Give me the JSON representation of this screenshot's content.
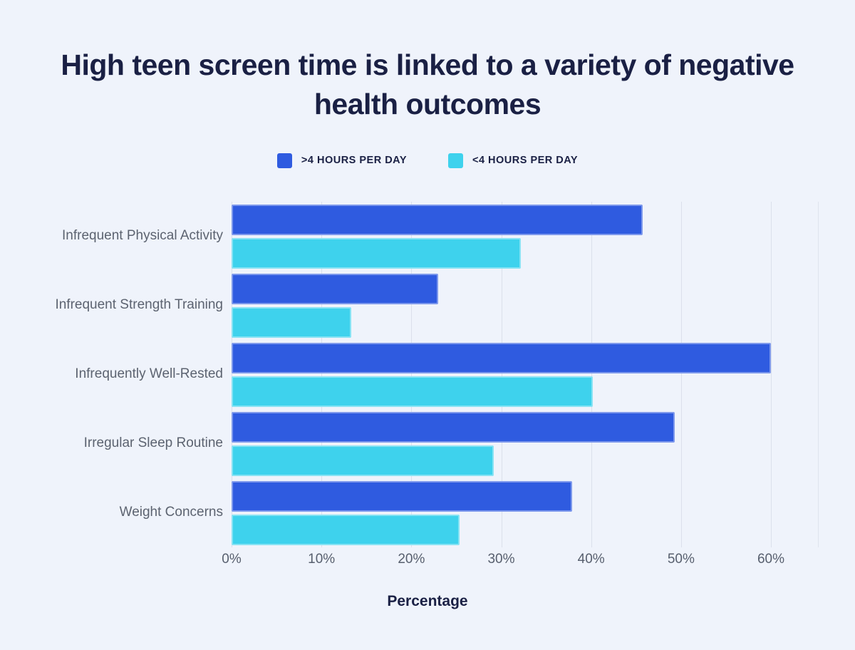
{
  "page": {
    "background_color": "#EFF3FB"
  },
  "chart_data": {
    "type": "bar",
    "orientation": "horizontal",
    "title": "High teen screen time is linked to a variety of negative health outcomes",
    "xlabel": "Percentage",
    "ylabel": "",
    "categories": [
      "Infrequent Physical Activity",
      "Infrequent Strength Training",
      "Infrequently Well-Rested",
      "Irregular Sleep Routine",
      "Weight Concerns"
    ],
    "series": [
      {
        "name": ">4 HOURS PER DAY",
        "color": "#2F5BE0",
        "values": [
          45.7,
          23.0,
          60.0,
          49.3,
          37.9
        ]
      },
      {
        "name": "<4 HOURS PER DAY",
        "color": "#3ED2ED",
        "values": [
          32.2,
          13.3,
          40.2,
          29.2,
          25.4
        ]
      }
    ],
    "xlim": [
      0,
      60
    ],
    "xticks": [
      0,
      10,
      20,
      30,
      40,
      50,
      60
    ],
    "xtick_labels": [
      "0%",
      "10%",
      "20%",
      "30%",
      "40%",
      "50%",
      "60%"
    ],
    "grid": "vertical",
    "legend_position": "top-center",
    "title_color": "#1A2044",
    "category_label_color": "#5C6370",
    "tick_label_color": "#575F6E",
    "gridline_color": "#DBE0EB"
  }
}
